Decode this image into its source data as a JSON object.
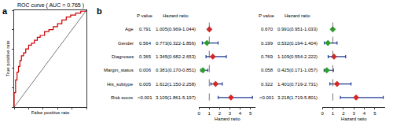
{
  "chart_data": [
    {
      "type": "line",
      "label": "a",
      "title": "ROC curve ( AUC = 0.765 )",
      "x_label": "False positive rate",
      "y_label": "True positive rate",
      "xlim": [
        0,
        1
      ],
      "ylim": [
        0,
        1
      ],
      "xticks": [
        0,
        0.2,
        0.4,
        0.6,
        0.8,
        1
      ],
      "yticks": [
        0,
        0.2,
        0.4,
        0.6,
        0.8,
        1
      ],
      "tick_labels": false,
      "grid": false,
      "series": [
        {
          "color": "#cc0000",
          "line_style": "step",
          "x": [
            0,
            0,
            0.02,
            0.04,
            0.06,
            0.08,
            0.1,
            0.13,
            0.16,
            0.2,
            0.24,
            0.28,
            0.32,
            0.36,
            0.42,
            0.48,
            0.54,
            0.6,
            0.66,
            0.72,
            0.78,
            0.85,
            0.92,
            1
          ],
          "values": [
            0,
            0.15,
            0.28,
            0.36,
            0.42,
            0.48,
            0.53,
            0.56,
            0.6,
            0.64,
            0.66,
            0.69,
            0.72,
            0.74,
            0.78,
            0.8,
            0.83,
            0.86,
            0.9,
            0.93,
            0.95,
            0.97,
            0.99,
            1
          ]
        },
        {
          "color": "#555555",
          "line_style": "solid",
          "x": [
            0,
            1
          ],
          "values": [
            0,
            1
          ]
        }
      ]
    },
    {
      "type": "forest",
      "label": "b",
      "categories": [
        "Age",
        "Gender",
        "Diagnoses",
        "Margin_status",
        "His_subtype",
        "Risk score"
      ],
      "p_header": "P value",
      "hr_header": "Hazard ratio",
      "x_label": "Hazard ratio",
      "reference_line": 1,
      "xlim": [
        0,
        5.5
      ],
      "xticks": [
        0,
        1,
        2,
        3,
        4,
        5
      ],
      "tick_labels": "x",
      "p_values": [
        "0.791",
        "0.564",
        "0.365",
        "0.006",
        "0.005",
        "<0.001"
      ],
      "values": [
        1.005,
        0.773,
        1.345,
        0.381,
        1.612,
        3.109
      ],
      "ci_low": [
        0.969,
        0.322,
        0.682,
        0.17,
        1.15,
        1.861
      ],
      "ci_high": [
        1.044,
        1.856,
        2.653,
        0.851,
        2.258,
        5.197
      ],
      "value_labels": [
        "1.005(0.969-1.044)",
        "0.773(0.322-1.856)",
        "1.345(0.682-2.653)",
        "0.381(0.170-0.851)",
        "1.612(1.150-2.258)",
        "3.109(1.861-5.197)"
      ],
      "color": "#1f3a93",
      "marker": "diamond",
      "colors": [
        "#d62728",
        "#2ca02c",
        "#d62728",
        "#2ca02c",
        "#d62728",
        "#d62728"
      ]
    },
    {
      "type": "forest",
      "p_header": "P value",
      "hr_header": "Hazard ratio",
      "x_label": "Hazard ratio",
      "reference_line": 1,
      "xlim": [
        0,
        6
      ],
      "xticks": [
        0,
        1,
        2,
        3,
        4,
        5
      ],
      "tick_labels": "x",
      "p_values": [
        "0.670",
        "0.199",
        "0.769",
        "0.058",
        "0.322",
        "<0.001"
      ],
      "values": [
        0.991,
        0.532,
        1.109,
        0.425,
        1.401,
        3.218
      ],
      "ci_low": [
        0.951,
        0.194,
        0.554,
        0.171,
        0.719,
        1.719
      ],
      "ci_high": [
        1.033,
        1.404,
        2.222,
        1.057,
        2.731,
        5.801
      ],
      "value_labels": [
        "0.991(0.951-1.033)",
        "0.532(0.194-1.404)",
        "1.109(0.554-2.222)",
        "0.425(0.171-1.057)",
        "1.401(0.719-2.731)",
        "3.218(1.719-5.801)"
      ],
      "color": "#1f3a93",
      "marker": "diamond",
      "colors": [
        "#2ca02c",
        "#2ca02c",
        "#d62728",
        "#2ca02c",
        "#d62728",
        "#d62728"
      ]
    }
  ]
}
